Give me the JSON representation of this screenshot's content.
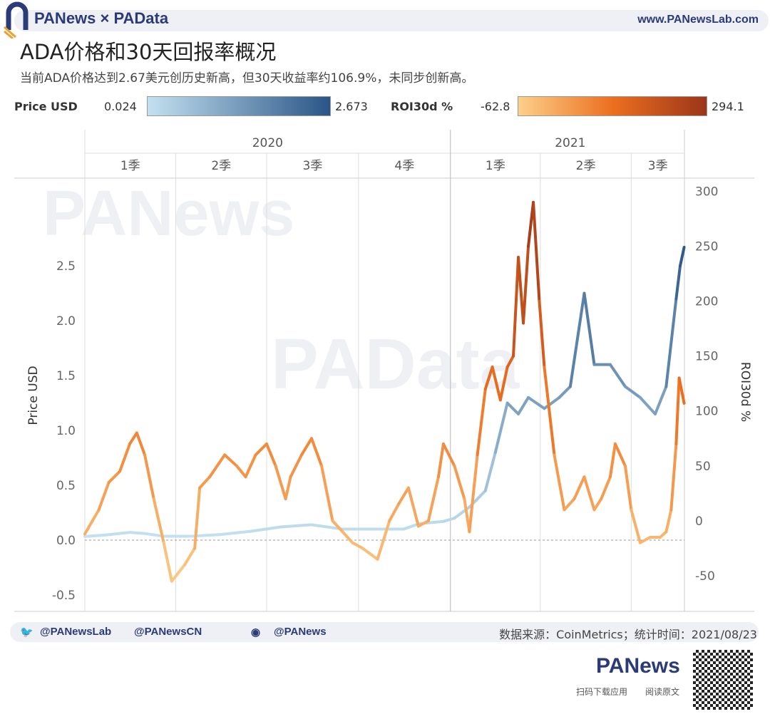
{
  "header": {
    "brand": "PANews × PAData",
    "site": "www.PANewsLab.com"
  },
  "title": "ADA价格和30天回报率概况",
  "subtitle": "当前ADA价格达到2.67美元创历史新高，但30天收益率约106.9%，未同步创新高。",
  "legend": {
    "price_label": "Price USD",
    "price_min": "0.024",
    "price_max": "2.673",
    "price_colors": [
      "#c3e1f0",
      "#2a5587"
    ],
    "roi_label": "ROI30d %",
    "roi_min": "-62.8",
    "roi_max": "294.1",
    "roi_colors": [
      "#fdd08a",
      "#ec6f20",
      "#9c3519"
    ]
  },
  "footer": {
    "twitter": "@PANewsLab",
    "twitter2": "@PANewsCN",
    "weibo": "@PANews",
    "source": "数据来源：CoinMetrics；统计时间：2021/08/23",
    "app_brand": "PANews",
    "app_text": "扫码下载应用",
    "read_text": "阅读原文"
  },
  "watermarks": [
    "PANews",
    "PAData"
  ],
  "chart_data": {
    "type": "line",
    "years": [
      "2020",
      "2021"
    ],
    "quarters": [
      "1季",
      "2季",
      "3季",
      "4季",
      "1季",
      "2季",
      "3季"
    ],
    "ylabel_left": "Price USD",
    "ylabel_right": "ROI30d %",
    "ylim_left": [
      -0.65,
      3.3
    ],
    "yticks_left": [
      "-0.5",
      "0.0",
      "0.5",
      "1.0",
      "1.5",
      "2.0",
      "2.5"
    ],
    "ylim_right": [
      -82.5,
      312
    ],
    "yticks_right": [
      "-50",
      "0",
      "50",
      "100",
      "150",
      "200",
      "250",
      "300"
    ],
    "xlim": [
      "2020-01-01",
      "2021-08-29"
    ],
    "grid": true,
    "series": [
      {
        "name": "Price USD",
        "axis": "left",
        "points": [
          [
            "2020-01-01",
            0.033
          ],
          [
            "2020-01-20",
            0.045
          ],
          [
            "2020-02-15",
            0.07
          ],
          [
            "2020-03-01",
            0.06
          ],
          [
            "2020-03-20",
            0.035
          ],
          [
            "2020-04-15",
            0.035
          ],
          [
            "2020-05-15",
            0.05
          ],
          [
            "2020-06-15",
            0.08
          ],
          [
            "2020-07-15",
            0.12
          ],
          [
            "2020-08-15",
            0.14
          ],
          [
            "2020-09-15",
            0.1
          ],
          [
            "2020-10-15",
            0.1
          ],
          [
            "2020-11-15",
            0.1
          ],
          [
            "2020-12-01",
            0.15
          ],
          [
            "2020-12-25",
            0.17
          ],
          [
            "2021-01-05",
            0.2
          ],
          [
            "2021-01-20",
            0.3
          ],
          [
            "2021-02-05",
            0.45
          ],
          [
            "2021-02-15",
            0.8
          ],
          [
            "2021-02-27",
            1.25
          ],
          [
            "2021-03-10",
            1.15
          ],
          [
            "2021-03-20",
            1.3
          ],
          [
            "2021-04-05",
            1.2
          ],
          [
            "2021-04-20",
            1.3
          ],
          [
            "2021-05-01",
            1.4
          ],
          [
            "2021-05-15",
            2.25
          ],
          [
            "2021-05-25",
            1.6
          ],
          [
            "2021-06-10",
            1.6
          ],
          [
            "2021-06-25",
            1.4
          ],
          [
            "2021-07-10",
            1.3
          ],
          [
            "2021-07-25",
            1.15
          ],
          [
            "2021-08-05",
            1.4
          ],
          [
            "2021-08-15",
            2.2
          ],
          [
            "2021-08-19",
            2.5
          ],
          [
            "2021-08-23",
            2.67
          ]
        ]
      },
      {
        "name": "ROI30d %",
        "axis": "right",
        "points": [
          [
            "2020-01-01",
            -12
          ],
          [
            "2020-01-15",
            10
          ],
          [
            "2020-01-25",
            35
          ],
          [
            "2020-02-05",
            45
          ],
          [
            "2020-02-15",
            70
          ],
          [
            "2020-02-22",
            80
          ],
          [
            "2020-03-01",
            60
          ],
          [
            "2020-03-10",
            20
          ],
          [
            "2020-03-20",
            -20
          ],
          [
            "2020-03-28",
            -55
          ],
          [
            "2020-04-10",
            -40
          ],
          [
            "2020-04-20",
            -25
          ],
          [
            "2020-04-25",
            30
          ],
          [
            "2020-05-05",
            40
          ],
          [
            "2020-05-20",
            60
          ],
          [
            "2020-06-01",
            50
          ],
          [
            "2020-06-10",
            40
          ],
          [
            "2020-06-20",
            60
          ],
          [
            "2020-07-01",
            70
          ],
          [
            "2020-07-10",
            50
          ],
          [
            "2020-07-20",
            20
          ],
          [
            "2020-07-25",
            40
          ],
          [
            "2020-08-05",
            60
          ],
          [
            "2020-08-15",
            75
          ],
          [
            "2020-08-25",
            50
          ],
          [
            "2020-09-05",
            0
          ],
          [
            "2020-09-15",
            -10
          ],
          [
            "2020-09-25",
            -20
          ],
          [
            "2020-10-05",
            -25
          ],
          [
            "2020-10-20",
            -35
          ],
          [
            "2020-11-01",
            0
          ],
          [
            "2020-11-10",
            15
          ],
          [
            "2020-11-20",
            30
          ],
          [
            "2020-11-30",
            -5
          ],
          [
            "2020-12-10",
            0
          ],
          [
            "2020-12-20",
            40
          ],
          [
            "2020-12-25",
            70
          ],
          [
            "2021-01-05",
            50
          ],
          [
            "2021-01-15",
            20
          ],
          [
            "2021-01-20",
            -10
          ],
          [
            "2021-01-28",
            60
          ],
          [
            "2021-02-05",
            120
          ],
          [
            "2021-02-12",
            140
          ],
          [
            "2021-02-20",
            110
          ],
          [
            "2021-02-27",
            140
          ],
          [
            "2021-03-05",
            150
          ],
          [
            "2021-03-10",
            240
          ],
          [
            "2021-03-15",
            180
          ],
          [
            "2021-03-20",
            250
          ],
          [
            "2021-03-25",
            290
          ],
          [
            "2021-03-31",
            200
          ],
          [
            "2021-04-05",
            140
          ],
          [
            "2021-04-15",
            60
          ],
          [
            "2021-04-25",
            10
          ],
          [
            "2021-05-05",
            20
          ],
          [
            "2021-05-15",
            40
          ],
          [
            "2021-05-25",
            10
          ],
          [
            "2021-06-01",
            20
          ],
          [
            "2021-06-10",
            40
          ],
          [
            "2021-06-15",
            70
          ],
          [
            "2021-06-25",
            50
          ],
          [
            "2021-07-01",
            10
          ],
          [
            "2021-07-10",
            -20
          ],
          [
            "2021-07-20",
            -15
          ],
          [
            "2021-07-30",
            -15
          ],
          [
            "2021-08-05",
            -10
          ],
          [
            "2021-08-10",
            10
          ],
          [
            "2021-08-15",
            70
          ],
          [
            "2021-08-18",
            130
          ],
          [
            "2021-08-23",
            107
          ]
        ]
      }
    ]
  }
}
